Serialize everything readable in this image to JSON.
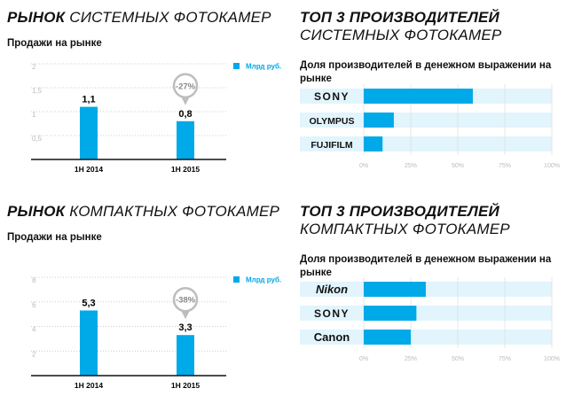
{
  "colors": {
    "bar": "#00a9e8",
    "track": "#e2f4fc",
    "badge": "#bdbdbd"
  },
  "sections": [
    {
      "title_bold": "РЫНОК",
      "title_rest": "СИСТЕМНЫХ ФОТОКАМЕР",
      "subtitle": "Продажи на рынке"
    },
    {
      "title_bold": "ТОП 3 ПРОИЗВОДИТЕЛЕЙ",
      "title_rest": "СИСТЕМНЫХ ФОТОКАМЕР",
      "subtitle": "Доля производителей в денежном выражении на рынке"
    },
    {
      "title_bold": "РЫНОК",
      "title_rest": "КОМПАКТНЫХ ФОТОКАМЕР",
      "subtitle": "Продажи на рынке"
    },
    {
      "title_bold": "ТОП 3 ПРОИЗВОДИТЕЛЕЙ",
      "title_rest": "КОМПАКТНЫХ ФОТОКАМЕР",
      "subtitle": "Доля производителей в денежном выражении на рынке"
    }
  ],
  "chart_data": [
    {
      "type": "bar",
      "title": "Продажи на рынке",
      "legend": "Млрд руб.",
      "categories": [
        "1H 2014",
        "1H 2015"
      ],
      "values": [
        1.1,
        0.8
      ],
      "value_labels": [
        "1,1",
        "0,8"
      ],
      "yticks": [
        "0,5",
        "1",
        "1,5",
        "2"
      ],
      "ylim": [
        0,
        2
      ],
      "change": "-27%"
    },
    {
      "type": "bar",
      "orientation": "horizontal",
      "title": "Доля производителей в денежном выражении на рынке",
      "categories": [
        "SONY",
        "OLYMPUS",
        "FUJIFILM"
      ],
      "values": [
        58,
        16,
        10
      ],
      "xticks": [
        "0%",
        "25%",
        "50%",
        "75%",
        "100%"
      ],
      "xlim": [
        0,
        100
      ]
    },
    {
      "type": "bar",
      "title": "Продажи на рынке",
      "legend": "Млрд руб.",
      "categories": [
        "1H 2014",
        "1H 2015"
      ],
      "values": [
        5.3,
        3.3
      ],
      "value_labels": [
        "5,3",
        "3,3"
      ],
      "yticks": [
        "2",
        "4",
        "6",
        "8"
      ],
      "ylim": [
        0,
        8
      ],
      "change": "-38%"
    },
    {
      "type": "bar",
      "orientation": "horizontal",
      "title": "Доля производителей в денежном выражении на рынке",
      "categories": [
        "Nikon",
        "SONY",
        "Canon"
      ],
      "values": [
        33,
        28,
        25
      ],
      "xticks": [
        "0%",
        "25%",
        "50%",
        "75%",
        "100%"
      ],
      "xlim": [
        0,
        100
      ]
    }
  ]
}
